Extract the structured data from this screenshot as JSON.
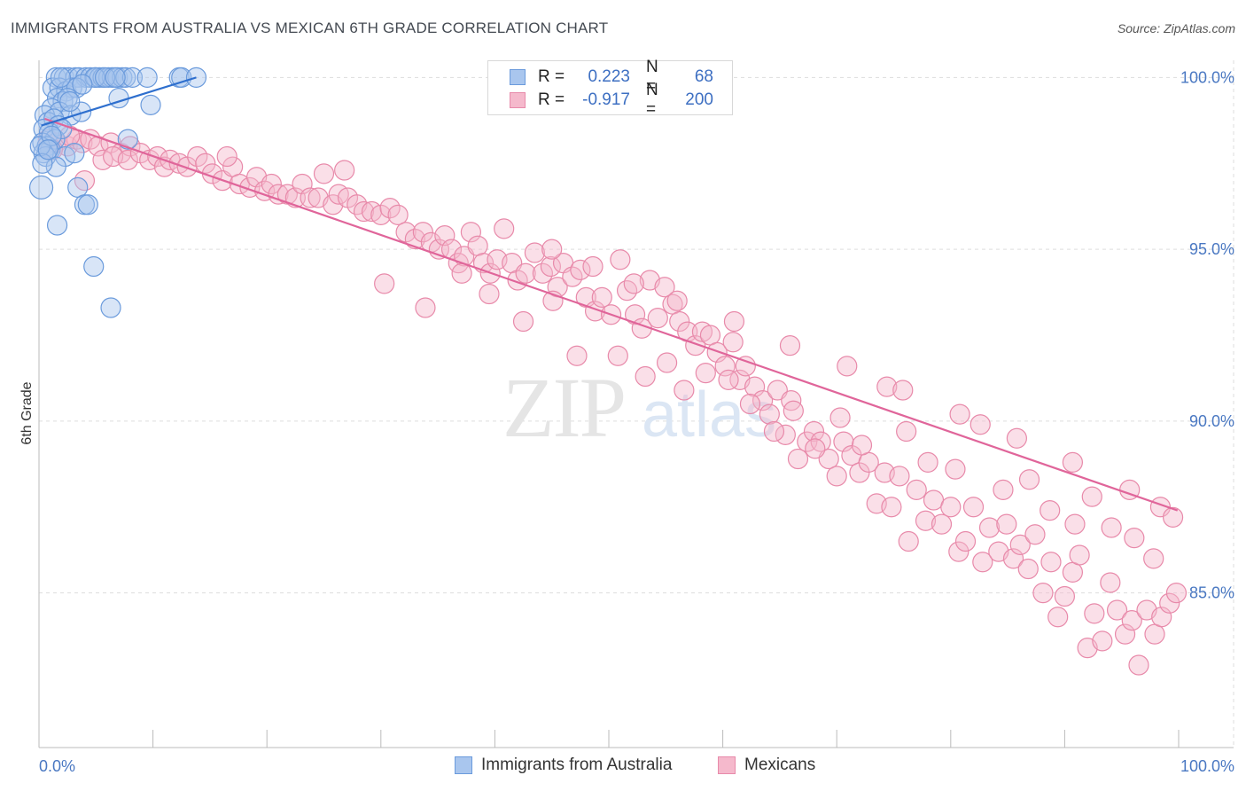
{
  "title": "IMMIGRANTS FROM AUSTRALIA VS MEXICAN 6TH GRADE CORRELATION CHART",
  "source": "Source: ZipAtlas.com",
  "watermark": {
    "zip": "ZIP",
    "atlas": "atlas"
  },
  "legend_top": [
    {
      "r_label": "R =",
      "r_value": "0.223",
      "n_label": "N =",
      "n_value": "68"
    },
    {
      "r_label": "R =",
      "r_value": "-0.917",
      "n_label": "N =",
      "n_value": "200"
    }
  ],
  "legend_bottom": [
    {
      "label": "Immigrants from Australia"
    },
    {
      "label": "Mexicans"
    }
  ],
  "colors": {
    "blue_fill": "#a9c6ee",
    "blue_stroke": "#6b9bdc",
    "blue_line": "#2e6fce",
    "pink_fill": "#f5b9cc",
    "pink_stroke": "#e88aaa",
    "pink_line": "#e0659a",
    "tick_text": "#4a78c2",
    "grid": "#dddddd"
  },
  "chart_data": {
    "type": "scatter",
    "title": "IMMIGRANTS FROM AUSTRALIA VS MEXICAN 6TH GRADE CORRELATION CHART",
    "xlabel": "",
    "ylabel": "6th Grade",
    "xlim": [
      0,
      100
    ],
    "ylim": [
      80.5,
      100.5
    ],
    "x_tick_labels": [
      {
        "value": 0,
        "label": "0.0%"
      },
      {
        "value": 100,
        "label": "100.0%"
      }
    ],
    "y_tick_labels": [
      {
        "value": 100,
        "label": "100.0%"
      },
      {
        "value": 95,
        "label": "95.0%"
      },
      {
        "value": 90,
        "label": "90.0%"
      },
      {
        "value": 85,
        "label": "85.0%"
      }
    ],
    "series": [
      {
        "name": "Immigrants from Australia",
        "r": 0.223,
        "n": 68,
        "trend": {
          "x": [
            0.2,
            13.8
          ],
          "y": [
            98.6,
            100.0
          ]
        },
        "points": [
          [
            1.5,
            100
          ],
          [
            2.2,
            100
          ],
          [
            2.6,
            100
          ],
          [
            3.2,
            100
          ],
          [
            3.5,
            100
          ],
          [
            4.1,
            100
          ],
          [
            4.5,
            100
          ],
          [
            5.0,
            100
          ],
          [
            5.3,
            100
          ],
          [
            5.6,
            100
          ],
          [
            6.1,
            100
          ],
          [
            6.4,
            100
          ],
          [
            6.9,
            100
          ],
          [
            7.3,
            100
          ],
          [
            7.6,
            100
          ],
          [
            8.2,
            100
          ],
          [
            9.5,
            100
          ],
          [
            12.3,
            100
          ],
          [
            12.5,
            100
          ],
          [
            13.8,
            100
          ],
          [
            1.2,
            99.7
          ],
          [
            1.8,
            99.7
          ],
          [
            2.4,
            99.6
          ],
          [
            2.9,
            99.7
          ],
          [
            3.3,
            99.7
          ],
          [
            1.6,
            99.4
          ],
          [
            2.1,
            99.3
          ],
          [
            2.5,
            99.4
          ],
          [
            7.0,
            99.4
          ],
          [
            1.1,
            99.1
          ],
          [
            1.8,
            99.0
          ],
          [
            2.8,
            98.9
          ],
          [
            3.7,
            99.0
          ],
          [
            9.8,
            99.2
          ],
          [
            0.5,
            98.9
          ],
          [
            0.8,
            98.7
          ],
          [
            1.3,
            98.8
          ],
          [
            1.7,
            98.6
          ],
          [
            0.4,
            98.5
          ],
          [
            0.9,
            98.4
          ],
          [
            1.4,
            98.2
          ],
          [
            0.3,
            98.1
          ],
          [
            0.7,
            98.0
          ],
          [
            1.0,
            97.9
          ],
          [
            0.4,
            97.8
          ],
          [
            0.6,
            97.7
          ],
          [
            2.3,
            97.7
          ],
          [
            3.1,
            97.8
          ],
          [
            7.8,
            98.2
          ],
          [
            1.5,
            97.4
          ],
          [
            0.2,
            96.8
          ],
          [
            3.4,
            96.8
          ],
          [
            4.0,
            96.3
          ],
          [
            4.3,
            96.3
          ],
          [
            1.6,
            95.7
          ],
          [
            4.8,
            94.5
          ],
          [
            6.3,
            93.3
          ],
          [
            0.1,
            98.0
          ],
          [
            0.3,
            97.5
          ],
          [
            2.0,
            98.5
          ],
          [
            1.9,
            100
          ],
          [
            4.9,
            100
          ],
          [
            5.8,
            100
          ],
          [
            6.7,
            100
          ],
          [
            3.8,
            99.8
          ],
          [
            2.7,
            99.3
          ],
          [
            1.1,
            98.3
          ],
          [
            0.8,
            97.9
          ]
        ]
      },
      {
        "name": "Mexicans",
        "r": -0.917,
        "n": 200,
        "trend": {
          "x": [
            0.5,
            99.9
          ],
          "y": [
            98.8,
            87.4
          ]
        },
        "points": [
          [
            0.8,
            98.2
          ],
          [
            1.5,
            98.1
          ],
          [
            2.5,
            98.0
          ],
          [
            3.3,
            98.2
          ],
          [
            3.8,
            98.1
          ],
          [
            4.5,
            98.2
          ],
          [
            5.2,
            98.0
          ],
          [
            6.3,
            98.1
          ],
          [
            7.2,
            97.8
          ],
          [
            8.0,
            98.0
          ],
          [
            1.2,
            97.9
          ],
          [
            2.7,
            98.3
          ],
          [
            4.0,
            97.0
          ],
          [
            5.6,
            97.6
          ],
          [
            6.5,
            97.7
          ],
          [
            7.8,
            97.6
          ],
          [
            8.9,
            97.8
          ],
          [
            9.7,
            97.6
          ],
          [
            10.4,
            97.7
          ],
          [
            11.0,
            97.4
          ],
          [
            11.5,
            97.6
          ],
          [
            12.3,
            97.5
          ],
          [
            13.0,
            97.4
          ],
          [
            13.9,
            97.7
          ],
          [
            14.6,
            97.5
          ],
          [
            15.2,
            97.2
          ],
          [
            16.1,
            97.0
          ],
          [
            17.0,
            97.4
          ],
          [
            17.6,
            96.9
          ],
          [
            18.5,
            96.8
          ],
          [
            19.1,
            97.1
          ],
          [
            19.8,
            96.7
          ],
          [
            20.4,
            96.9
          ],
          [
            21.0,
            96.6
          ],
          [
            21.8,
            96.6
          ],
          [
            22.5,
            96.5
          ],
          [
            23.1,
            96.9
          ],
          [
            23.8,
            96.5
          ],
          [
            24.5,
            96.5
          ],
          [
            25.0,
            97.2
          ],
          [
            25.8,
            96.3
          ],
          [
            26.3,
            96.6
          ],
          [
            27.1,
            96.5
          ],
          [
            27.9,
            96.3
          ],
          [
            28.5,
            96.1
          ],
          [
            29.2,
            96.1
          ],
          [
            30.0,
            96.0
          ],
          [
            30.8,
            96.2
          ],
          [
            31.5,
            96.0
          ],
          [
            32.2,
            95.5
          ],
          [
            33.0,
            95.3
          ],
          [
            33.7,
            95.5
          ],
          [
            34.4,
            95.2
          ],
          [
            35.1,
            95.0
          ],
          [
            35.6,
            95.4
          ],
          [
            36.2,
            95.0
          ],
          [
            36.8,
            94.6
          ],
          [
            37.3,
            94.8
          ],
          [
            37.9,
            95.5
          ],
          [
            38.5,
            95.1
          ],
          [
            39.0,
            94.6
          ],
          [
            39.6,
            94.3
          ],
          [
            40.2,
            94.7
          ],
          [
            40.8,
            95.6
          ],
          [
            41.5,
            94.6
          ],
          [
            42.0,
            94.1
          ],
          [
            42.7,
            94.3
          ],
          [
            43.5,
            94.9
          ],
          [
            44.2,
            94.3
          ],
          [
            44.9,
            94.5
          ],
          [
            45.5,
            93.9
          ],
          [
            46.0,
            94.6
          ],
          [
            46.8,
            94.2
          ],
          [
            47.5,
            94.4
          ],
          [
            48.0,
            93.6
          ],
          [
            48.8,
            93.2
          ],
          [
            49.4,
            93.6
          ],
          [
            50.2,
            93.1
          ],
          [
            51.0,
            94.7
          ],
          [
            51.6,
            93.8
          ],
          [
            52.3,
            93.1
          ],
          [
            52.9,
            92.7
          ],
          [
            53.6,
            94.1
          ],
          [
            54.3,
            93.0
          ],
          [
            54.9,
            93.9
          ],
          [
            55.6,
            93.4
          ],
          [
            56.2,
            92.9
          ],
          [
            56.9,
            92.6
          ],
          [
            57.6,
            92.2
          ],
          [
            58.2,
            92.6
          ],
          [
            58.9,
            92.5
          ],
          [
            59.5,
            92.0
          ],
          [
            60.2,
            91.6
          ],
          [
            60.9,
            92.3
          ],
          [
            61.5,
            91.2
          ],
          [
            62.0,
            91.6
          ],
          [
            62.8,
            91.0
          ],
          [
            63.5,
            90.6
          ],
          [
            64.1,
            90.2
          ],
          [
            64.8,
            90.9
          ],
          [
            65.5,
            89.6
          ],
          [
            66.0,
            90.6
          ],
          [
            66.6,
            88.9
          ],
          [
            67.4,
            89.4
          ],
          [
            68.0,
            89.7
          ],
          [
            68.6,
            89.4
          ],
          [
            69.3,
            88.9
          ],
          [
            70.0,
            88.4
          ],
          [
            70.6,
            89.4
          ],
          [
            71.3,
            89.0
          ],
          [
            72.0,
            88.5
          ],
          [
            72.8,
            88.8
          ],
          [
            73.5,
            87.6
          ],
          [
            74.2,
            88.5
          ],
          [
            74.8,
            87.5
          ],
          [
            75.5,
            88.4
          ],
          [
            76.3,
            86.5
          ],
          [
            77.0,
            88.0
          ],
          [
            77.8,
            87.1
          ],
          [
            78.5,
            87.7
          ],
          [
            79.2,
            87.0
          ],
          [
            80.0,
            87.5
          ],
          [
            80.7,
            86.2
          ],
          [
            81.3,
            86.5
          ],
          [
            82.0,
            87.5
          ],
          [
            82.8,
            85.9
          ],
          [
            83.4,
            86.9
          ],
          [
            84.2,
            86.2
          ],
          [
            84.9,
            87.0
          ],
          [
            85.5,
            86.0
          ],
          [
            86.1,
            86.4
          ],
          [
            86.8,
            85.7
          ],
          [
            87.4,
            86.7
          ],
          [
            88.1,
            85.0
          ],
          [
            88.8,
            85.9
          ],
          [
            89.4,
            84.3
          ],
          [
            90.0,
            84.9
          ],
          [
            90.7,
            85.6
          ],
          [
            91.3,
            86.1
          ],
          [
            92.0,
            83.4
          ],
          [
            92.6,
            84.4
          ],
          [
            93.3,
            83.6
          ],
          [
            94.0,
            85.3
          ],
          [
            94.6,
            84.5
          ],
          [
            95.3,
            83.8
          ],
          [
            95.9,
            84.2
          ],
          [
            96.5,
            82.9
          ],
          [
            97.2,
            84.5
          ],
          [
            97.9,
            83.8
          ],
          [
            98.5,
            84.3
          ],
          [
            99.2,
            84.7
          ],
          [
            99.8,
            85.0
          ],
          [
            30.3,
            94.0
          ],
          [
            33.9,
            93.3
          ],
          [
            37.1,
            94.3
          ],
          [
            39.5,
            93.7
          ],
          [
            42.5,
            92.9
          ],
          [
            45.1,
            93.5
          ],
          [
            47.2,
            91.9
          ],
          [
            50.8,
            91.9
          ],
          [
            53.2,
            91.3
          ],
          [
            55.1,
            91.7
          ],
          [
            56.6,
            90.9
          ],
          [
            58.5,
            91.4
          ],
          [
            60.5,
            91.2
          ],
          [
            62.4,
            90.5
          ],
          [
            64.5,
            89.7
          ],
          [
            66.2,
            90.3
          ],
          [
            68.1,
            89.2
          ],
          [
            70.3,
            90.1
          ],
          [
            72.2,
            89.3
          ],
          [
            74.4,
            91.0
          ],
          [
            76.1,
            89.7
          ],
          [
            78.0,
            88.8
          ],
          [
            80.4,
            88.6
          ],
          [
            82.6,
            89.9
          ],
          [
            84.6,
            88.0
          ],
          [
            86.9,
            88.3
          ],
          [
            88.7,
            87.4
          ],
          [
            90.9,
            87.0
          ],
          [
            92.4,
            87.8
          ],
          [
            94.1,
            86.9
          ],
          [
            96.1,
            86.6
          ],
          [
            97.8,
            86.0
          ],
          [
            45.0,
            95.0
          ],
          [
            48.6,
            94.5
          ],
          [
            52.2,
            94.0
          ],
          [
            56.0,
            93.5
          ],
          [
            61.0,
            92.9
          ],
          [
            65.9,
            92.2
          ],
          [
            70.9,
            91.6
          ],
          [
            75.8,
            90.9
          ],
          [
            80.8,
            90.2
          ],
          [
            85.8,
            89.5
          ],
          [
            90.7,
            88.8
          ],
          [
            95.7,
            88.0
          ],
          [
            98.4,
            87.5
          ],
          [
            99.5,
            87.2
          ],
          [
            26.8,
            97.3
          ],
          [
            16.5,
            97.7
          ]
        ]
      }
    ]
  }
}
